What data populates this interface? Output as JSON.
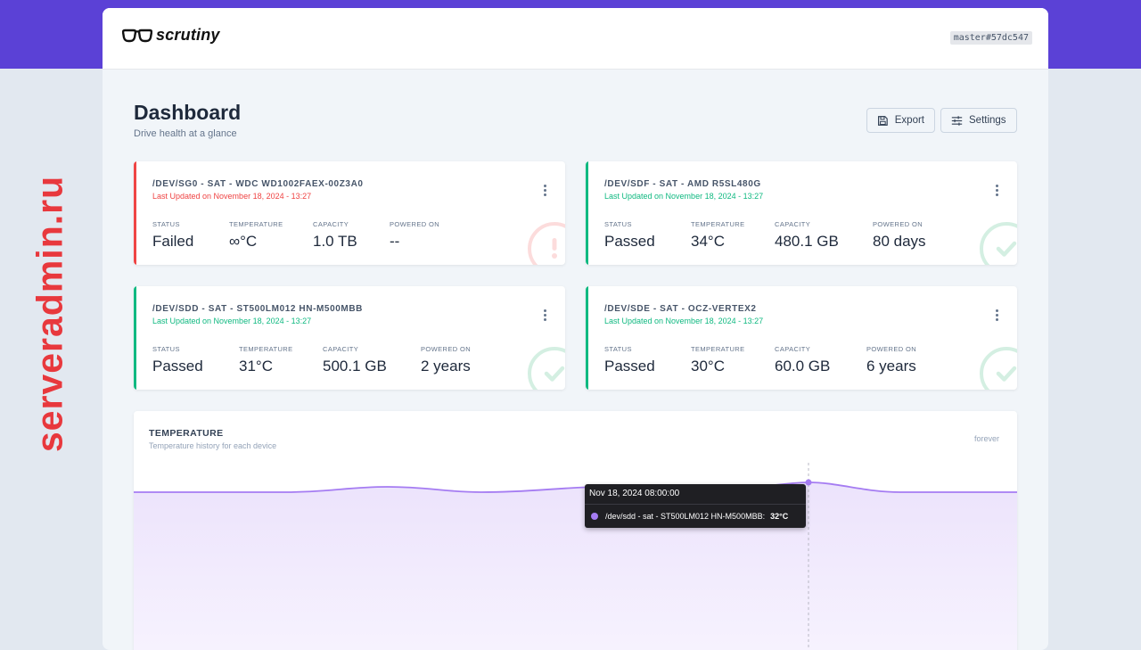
{
  "watermark": "serveradmin.ru",
  "app": {
    "name": "scrutiny",
    "version": "master#57dc547"
  },
  "page": {
    "title": "Dashboard",
    "subtitle": "Drive health at a glance"
  },
  "toolbar": {
    "export_label": "Export",
    "settings_label": "Settings"
  },
  "labels": {
    "status": "STATUS",
    "temperature": "TEMPERATURE",
    "capacity": "CAPACITY",
    "powered_on": "POWERED ON"
  },
  "colors": {
    "failed": "#ef4444",
    "passed": "#10b981",
    "accent": "#5b41d6",
    "series": "#a57cf2"
  },
  "devices": [
    {
      "name": "/DEV/SG0 - SAT - WDC WD1002FAEX-00Z3A0",
      "updated": "Last Updated on November 18, 2024 - 13:27",
      "status": "Failed",
      "temperature": "∞°C",
      "capacity": "1.0 TB",
      "powered_on": "--",
      "state": "failed"
    },
    {
      "name": "/DEV/SDF - SAT - AMD R5SL480G",
      "updated": "Last Updated on November 18, 2024 - 13:27",
      "status": "Passed",
      "temperature": "34°C",
      "capacity": "480.1 GB",
      "powered_on": "80 days",
      "state": "passed"
    },
    {
      "name": "/DEV/SDD - SAT - ST500LM012 HN-M500MBB",
      "updated": "Last Updated on November 18, 2024 - 13:27",
      "status": "Passed",
      "temperature": "31°C",
      "capacity": "500.1 GB",
      "powered_on": "2 years",
      "state": "passed"
    },
    {
      "name": "/DEV/SDE - SAT - OCZ-VERTEX2",
      "updated": "Last Updated on November 18, 2024 - 13:27",
      "status": "Passed",
      "temperature": "30°C",
      "capacity": "60.0 GB",
      "powered_on": "6 years",
      "state": "passed"
    }
  ],
  "temperature_chart": {
    "title": "TEMPERATURE",
    "subtitle": "Temperature history for each device",
    "range": "forever",
    "tooltip": {
      "date": "Nov 18, 2024 08:00:00",
      "series": "/dev/sdd - sat - ST500LM012 HN-M500MBB:",
      "value": "32°C"
    }
  }
}
